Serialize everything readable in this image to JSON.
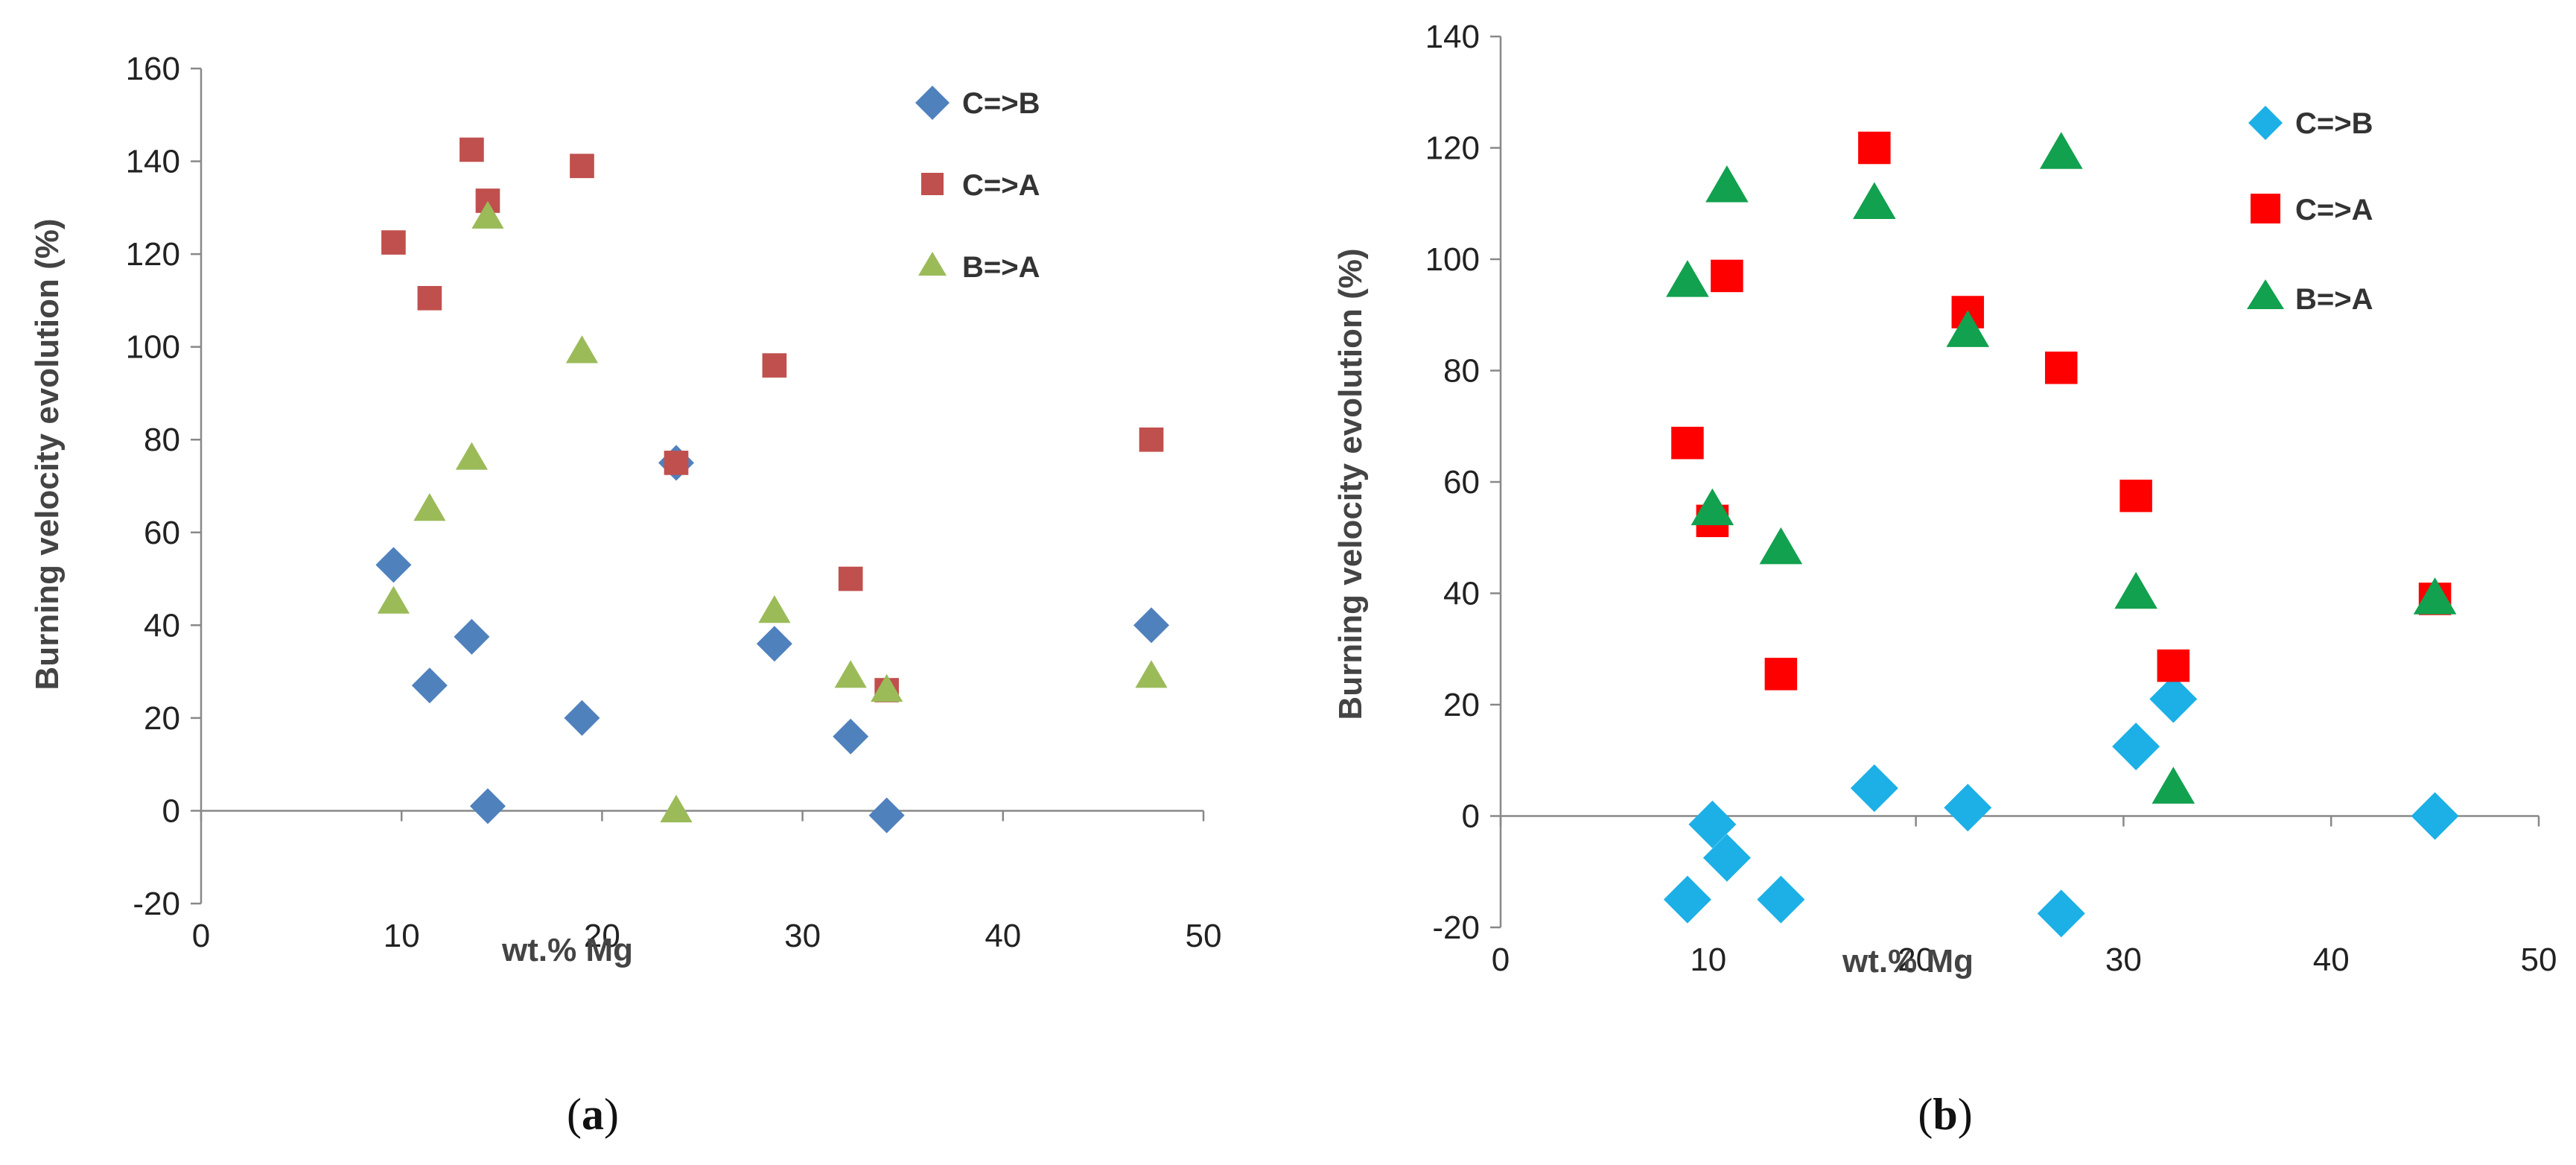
{
  "chart_data": [
    {
      "type": "scatter",
      "panel_label": "(a)",
      "caption": {
        "open": "(",
        "letter": "a",
        "close": ")"
      },
      "xlabel": "wt.% Mg",
      "ylabel": "Burning velocity evolution (%)",
      "xlim": [
        0,
        50
      ],
      "ylim": [
        -20,
        160
      ],
      "xticks": [
        0,
        10,
        20,
        30,
        40,
        50
      ],
      "yticks": [
        -20,
        0,
        20,
        40,
        60,
        80,
        100,
        120,
        140,
        160
      ],
      "grid": false,
      "legend_position": "top-right",
      "series": [
        {
          "name": "C=>B",
          "marker": "diamond",
          "color": "#4f81bd",
          "points": [
            [
              9.6,
              53
            ],
            [
              11.4,
              27
            ],
            [
              13.5,
              37.5
            ],
            [
              14.3,
              1
            ],
            [
              19,
              20
            ],
            [
              23.7,
              75
            ],
            [
              28.6,
              36
            ],
            [
              32.4,
              16
            ],
            [
              34.2,
              -1
            ],
            [
              47.4,
              40
            ]
          ]
        },
        {
          "name": "C=>A",
          "marker": "square",
          "color": "#c0504d",
          "points": [
            [
              9.6,
              122.5
            ],
            [
              11.4,
              110.5
            ],
            [
              13.5,
              142.5
            ],
            [
              14.3,
              131.5
            ],
            [
              19,
              139
            ],
            [
              23.7,
              75
            ],
            [
              28.6,
              96
            ],
            [
              32.4,
              50
            ],
            [
              34.2,
              26
            ],
            [
              47.4,
              80
            ]
          ]
        },
        {
          "name": "B=>A",
          "marker": "triangle",
          "color": "#9bbb59",
          "points": [
            [
              9.6,
              45
            ],
            [
              11.4,
              65
            ],
            [
              13.5,
              76
            ],
            [
              14.3,
              128
            ],
            [
              19,
              99
            ],
            [
              23.7,
              0
            ],
            [
              28.6,
              43
            ],
            [
              32.4,
              29
            ],
            [
              34.2,
              26
            ],
            [
              47.4,
              29
            ]
          ]
        }
      ]
    },
    {
      "type": "scatter",
      "panel_label": "(b)",
      "caption": {
        "open": "(",
        "letter": "b",
        "close": ")"
      },
      "xlabel": "wt.% Mg",
      "ylabel": "Burning velocity evolution (%)",
      "xlim": [
        0,
        50
      ],
      "ylim": [
        -20,
        140
      ],
      "xticks": [
        0,
        10,
        20,
        30,
        40,
        50
      ],
      "yticks": [
        -20,
        0,
        20,
        40,
        60,
        80,
        100,
        120,
        140
      ],
      "grid": false,
      "legend_position": "top-right",
      "series": [
        {
          "name": "C=>B",
          "marker": "diamond",
          "color": "#1cb0e6",
          "points": [
            [
              9,
              -15
            ],
            [
              10.2,
              -1.5
            ],
            [
              10.9,
              -7.5
            ],
            [
              13.5,
              -15
            ],
            [
              18,
              5
            ],
            [
              22.5,
              1.5
            ],
            [
              27,
              -17.5
            ],
            [
              30.6,
              12.5
            ],
            [
              32.4,
              21
            ],
            [
              45,
              0
            ]
          ]
        },
        {
          "name": "C=>A",
          "marker": "square",
          "color": "#ff0000",
          "points": [
            [
              9,
              67
            ],
            [
              10.2,
              53
            ],
            [
              10.9,
              97
            ],
            [
              13.5,
              25.5
            ],
            [
              18,
              120
            ],
            [
              22.5,
              90.5
            ],
            [
              27,
              80.5
            ],
            [
              30.6,
              57.5
            ],
            [
              32.4,
              27
            ],
            [
              45,
              39
            ]
          ]
        },
        {
          "name": "B=>A",
          "marker": "triangle",
          "color": "#12a14f",
          "points": [
            [
              9,
              96
            ],
            [
              10.2,
              55
            ],
            [
              10.9,
              113
            ],
            [
              13.5,
              48
            ],
            [
              18,
              110
            ],
            [
              22.5,
              87
            ],
            [
              27,
              119
            ],
            [
              30.6,
              40
            ],
            [
              32.4,
              5
            ],
            [
              45,
              39
            ]
          ]
        }
      ]
    }
  ]
}
